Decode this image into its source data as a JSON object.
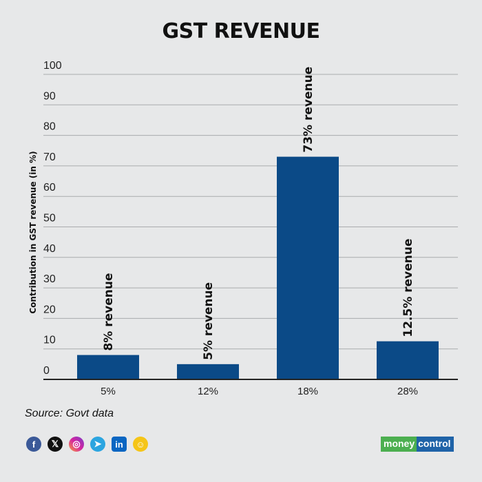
{
  "chart_data": {
    "type": "bar",
    "title": "GST REVENUE",
    "xlabel": "",
    "ylabel": "Contribution in GST revenue (in %)",
    "categories": [
      "5%",
      "12%",
      "18%",
      "28%"
    ],
    "values": [
      8,
      5,
      73,
      12.5
    ],
    "data_labels": [
      "8% revenue",
      "5% revenue",
      "73% revenue",
      "12.5% revenue"
    ],
    "ylim": [
      0,
      100
    ],
    "yticks": [
      0,
      10,
      20,
      30,
      40,
      50,
      60,
      70,
      80,
      90,
      100
    ],
    "grid": true,
    "bar_color": "#0b4a87"
  },
  "source": "Source: Govt data",
  "social_icons": [
    "facebook-icon",
    "x-icon",
    "instagram-icon",
    "telegram-icon",
    "linkedin-icon",
    "snapchat-icon"
  ],
  "brand": {
    "part1": "money",
    "part2": "control"
  }
}
